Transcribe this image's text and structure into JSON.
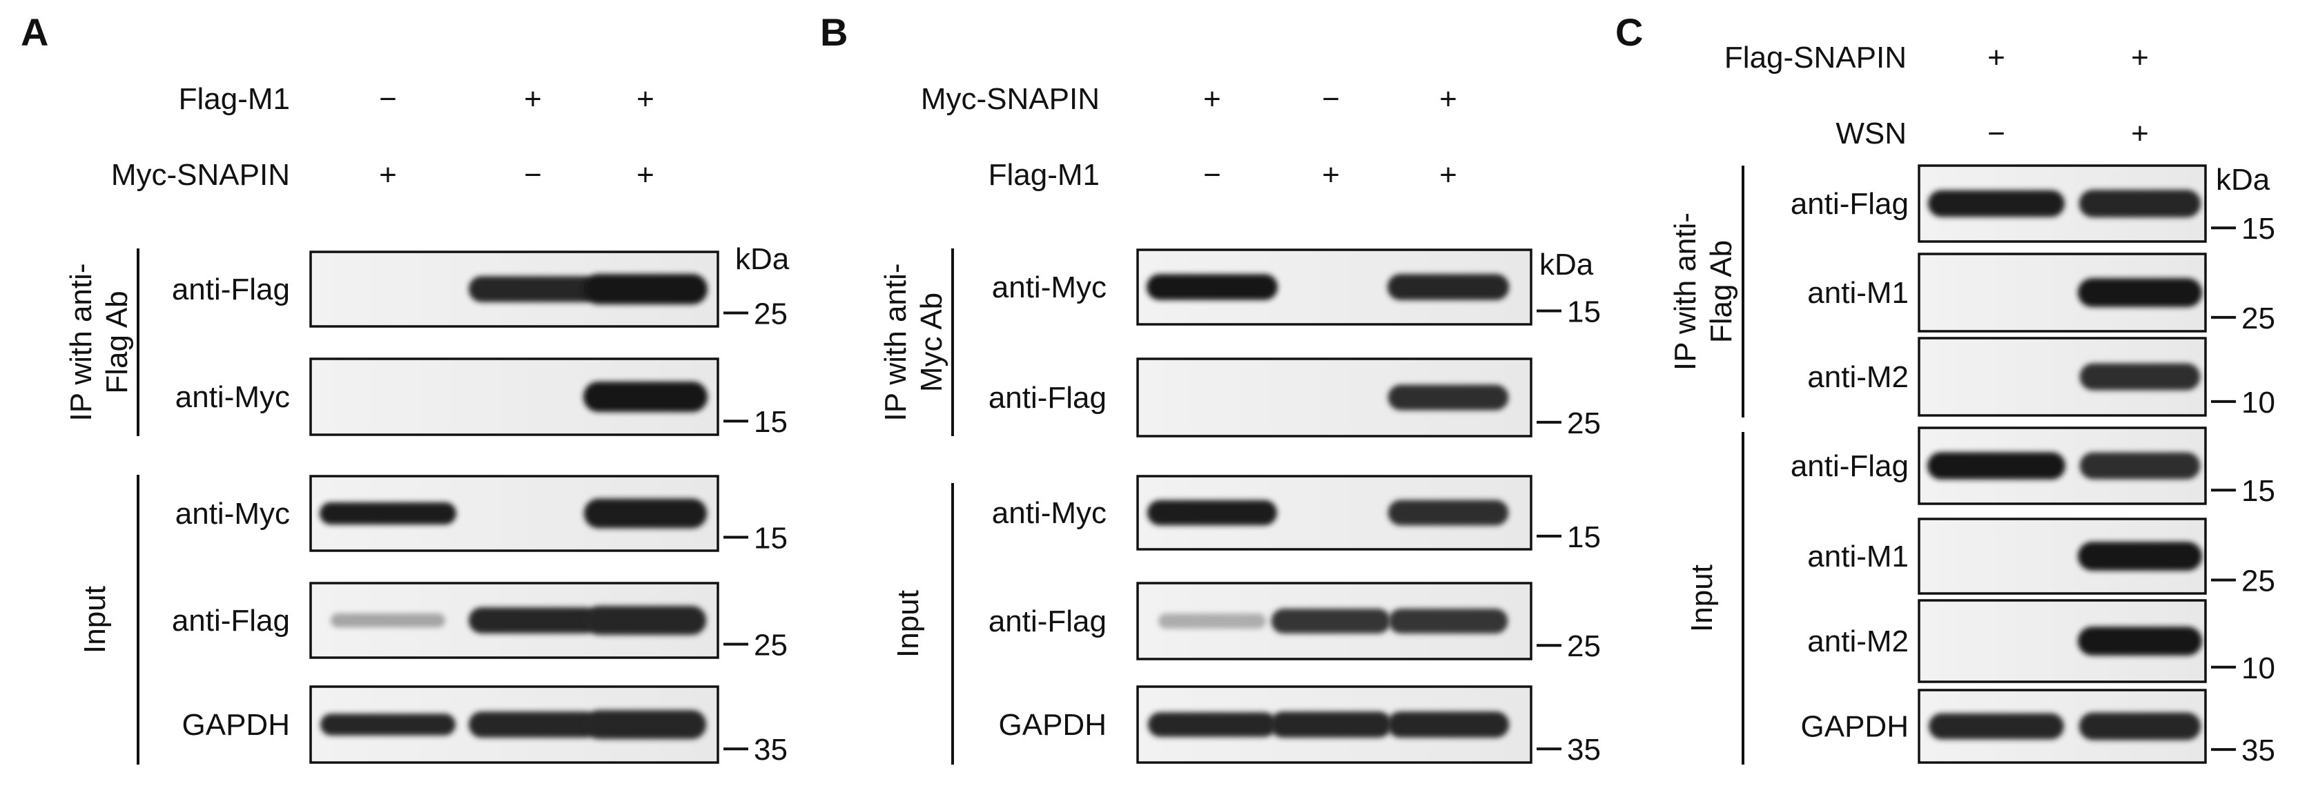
{
  "figure": {
    "panel_A": {
      "letter": "A",
      "conditions": [
        {
          "name": "Flag-M1",
          "signs": [
            "−",
            "+",
            "+"
          ]
        },
        {
          "name": "Myc-SNAPIN",
          "signs": [
            "+",
            "−",
            "+"
          ]
        }
      ],
      "sections": [
        {
          "label": "IP with anti-Flag Ab",
          "label_lines": [
            "IP with anti-",
            "Flag Ab"
          ]
        },
        {
          "label": "Input",
          "label_lines": [
            "Input"
          ]
        }
      ],
      "kda_label": "kDa",
      "blots": [
        {
          "name": "anti-Flag",
          "marker": "25",
          "bands": [
            0,
            0.9,
            1.0
          ]
        },
        {
          "name": "anti-Myc",
          "marker": "15",
          "bands": [
            0,
            0,
            1.0
          ]
        },
        {
          "name": "anti-Myc",
          "marker": "15",
          "bands": [
            0.95,
            0,
            0.95
          ]
        },
        {
          "name": "anti-Flag",
          "marker": "25",
          "bands": [
            0.15,
            0.9,
            0.9
          ]
        },
        {
          "name": "GAPDH",
          "marker": "35",
          "bands": [
            0.9,
            0.9,
            0.9
          ]
        }
      ]
    },
    "panel_B": {
      "letter": "B",
      "conditions": [
        {
          "name": "Myc-SNAPIN",
          "signs": [
            "+",
            "−",
            "+"
          ]
        },
        {
          "name": "Flag-M1",
          "signs": [
            "−",
            "+",
            "+"
          ]
        }
      ],
      "sections": [
        {
          "label": "IP with anti-Myc Ab",
          "label_lines": [
            "IP with anti-",
            "Myc Ab"
          ]
        },
        {
          "label": "Input",
          "label_lines": [
            "Input"
          ]
        }
      ],
      "kda_label": "kDa",
      "blots": [
        {
          "name": "anti-Myc",
          "marker": "15",
          "bands": [
            1.0,
            0,
            0.9
          ]
        },
        {
          "name": "anti-Flag",
          "marker": "25",
          "bands": [
            0,
            0,
            0.85
          ]
        },
        {
          "name": "anti-Myc",
          "marker": "15",
          "bands": [
            0.95,
            0,
            0.85
          ]
        },
        {
          "name": "anti-Flag",
          "marker": "25",
          "bands": [
            0.1,
            0.8,
            0.8
          ]
        },
        {
          "name": "GAPDH",
          "marker": "35",
          "bands": [
            0.9,
            0.9,
            0.9
          ]
        }
      ]
    },
    "panel_C": {
      "letter": "C",
      "conditions": [
        {
          "name": "Flag-SNAPIN",
          "signs": [
            "+",
            "+"
          ]
        },
        {
          "name": "WSN",
          "signs": [
            "−",
            "+"
          ]
        }
      ],
      "sections": [
        {
          "label": "IP with anti-Flag Ab",
          "label_lines": [
            "IP with anti-",
            "Flag Ab"
          ]
        },
        {
          "label": "Input",
          "label_lines": [
            "Input"
          ]
        }
      ],
      "kda_label": "kDa",
      "blots": [
        {
          "name": "anti-Flag",
          "marker": "15",
          "bands": [
            0.95,
            0.9
          ]
        },
        {
          "name": "anti-M1",
          "marker": "25",
          "bands": [
            0,
            1.0
          ]
        },
        {
          "name": "anti-M2",
          "marker": "10",
          "bands": [
            0,
            0.85
          ]
        },
        {
          "name": "anti-Flag",
          "marker": "15",
          "bands": [
            1.0,
            0.85
          ]
        },
        {
          "name": "anti-M1",
          "marker": "25",
          "bands": [
            0,
            1.0
          ]
        },
        {
          "name": "anti-M2",
          "marker": "10",
          "bands": [
            0,
            1.0
          ]
        },
        {
          "name": "GAPDH",
          "marker": "35",
          "bands": [
            0.9,
            0.9
          ]
        }
      ]
    }
  }
}
